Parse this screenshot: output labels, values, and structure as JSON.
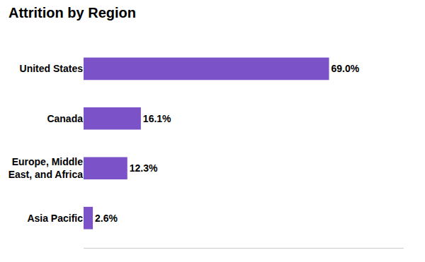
{
  "chart_data": {
    "type": "bar",
    "orientation": "horizontal",
    "title": "Attrition by Region",
    "categories": [
      "United States",
      "Canada",
      "Europe, Middle\nEast, and Africa",
      "Asia Pacific"
    ],
    "values": [
      69.0,
      16.1,
      12.3,
      2.6
    ],
    "value_labels": [
      "69.0%",
      "16.1%",
      "12.3%",
      "2.6%"
    ],
    "data_labels": true,
    "color": "#7B52C8",
    "xlim": [
      0,
      90
    ],
    "grid": false,
    "tick_labels": "y"
  }
}
